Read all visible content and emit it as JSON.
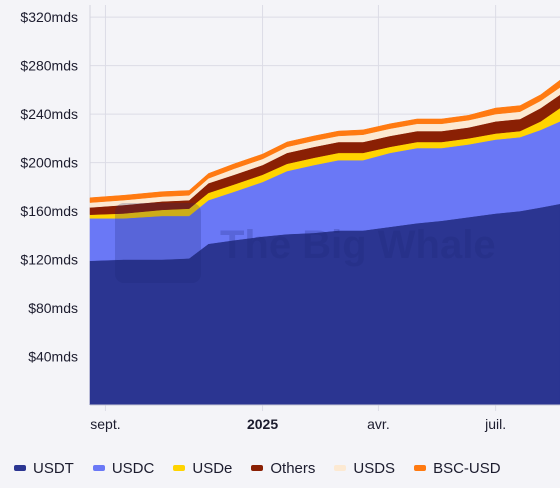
{
  "chart_data": {
    "type": "area",
    "stacked": true,
    "x_range": [
      "2024-08-20",
      "2025-08-20"
    ],
    "x_ticks": [
      {
        "date": "2024-09-01",
        "label": "sept.",
        "bold": false
      },
      {
        "date": "2025-01-01",
        "label": "2025",
        "bold": true
      },
      {
        "date": "2025-04-01",
        "label": "avr.",
        "bold": false
      },
      {
        "date": "2025-07-01",
        "label": "juil.",
        "bold": false
      }
    ],
    "y_range": [
      0,
      330
    ],
    "y_ticks": [
      {
        "value": 40,
        "label": "$40mds"
      },
      {
        "value": 80,
        "label": "$80mds"
      },
      {
        "value": 120,
        "label": "$120mds"
      },
      {
        "value": 160,
        "label": "$160mds"
      },
      {
        "value": 200,
        "label": "$200mds"
      },
      {
        "value": 240,
        "label": "$240mds"
      },
      {
        "value": 280,
        "label": "$280mds"
      },
      {
        "value": 320,
        "label": "$320mds"
      }
    ],
    "grid": true,
    "legend_position": "bottom",
    "watermark": "The Big Whale",
    "dates": [
      "2024-08-20",
      "2024-09-15",
      "2024-10-15",
      "2024-11-05",
      "2024-11-20",
      "2024-12-10",
      "2025-01-01",
      "2025-01-20",
      "2025-02-10",
      "2025-03-01",
      "2025-03-20",
      "2025-04-10",
      "2025-05-01",
      "2025-05-20",
      "2025-06-10",
      "2025-07-01",
      "2025-07-20",
      "2025-08-05",
      "2025-08-20"
    ],
    "series": [
      {
        "name": "USDT",
        "color": "#2b3591",
        "values": [
          119,
          120,
          120,
          121,
          133,
          136,
          139,
          141,
          142,
          144,
          144,
          147,
          150,
          152,
          155,
          158,
          160,
          163,
          166
        ]
      },
      {
        "name": "USDC",
        "color": "#6a78f6",
        "values": [
          35,
          34,
          36,
          35,
          36,
          40,
          45,
          52,
          56,
          58,
          58,
          61,
          62,
          60,
          60,
          61,
          61,
          64,
          68
        ]
      },
      {
        "name": "USDe",
        "color": "#ffd400",
        "values": [
          3,
          4,
          5,
          6,
          6,
          6,
          6,
          6,
          6,
          6,
          6,
          5,
          5,
          5,
          5,
          5,
          5,
          7,
          11
        ]
      },
      {
        "name": "Others",
        "color": "#8a2004",
        "values": [
          6,
          7,
          7,
          7,
          8,
          8,
          8,
          9,
          9,
          9,
          9,
          9,
          9,
          9,
          9,
          10,
          10,
          11,
          11
        ]
      },
      {
        "name": "USDS",
        "color": "#fce9d2",
        "values": [
          4,
          4,
          4,
          4,
          4,
          5,
          5,
          5,
          5,
          5,
          6,
          6,
          6,
          6,
          6,
          6,
          6,
          6,
          6
        ]
      },
      {
        "name": "BSC-USD",
        "color": "#ff7a11",
        "values": [
          4,
          4,
          4,
          4,
          4,
          4,
          4,
          4,
          4,
          4,
          4,
          4,
          4,
          4,
          4,
          5,
          5,
          5,
          6
        ]
      }
    ]
  }
}
